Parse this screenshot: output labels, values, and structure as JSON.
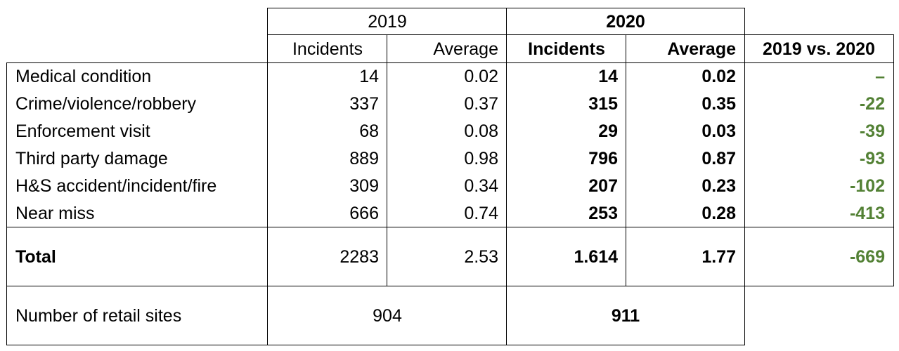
{
  "table": {
    "year_2019": "2019",
    "year_2020": "2020",
    "col_incidents_2019": "Incidents",
    "col_average_2019": "Average",
    "col_incidents_2020": "Incidents",
    "col_average_2020": "Average",
    "col_change": "2019 vs. 2020",
    "rows": [
      {
        "label": "Medical condition",
        "inc_2019": "14",
        "avg_2019": "0.02",
        "inc_2020": "14",
        "avg_2020": "0.02",
        "change": "–"
      },
      {
        "label": "Crime/violence/robbery",
        "inc_2019": "337",
        "avg_2019": "0.37",
        "inc_2020": "315",
        "avg_2020": "0.35",
        "change": "-22"
      },
      {
        "label": "Enforcement visit",
        "inc_2019": "68",
        "avg_2019": "0.08",
        "inc_2020": "29",
        "avg_2020": "0.03",
        "change": "-39"
      },
      {
        "label": "Third party damage",
        "inc_2019": "889",
        "avg_2019": "0.98",
        "inc_2020": "796",
        "avg_2020": "0.87",
        "change": "-93"
      },
      {
        "label": "H&S accident/incident/fire",
        "inc_2019": "309",
        "avg_2019": "0.34",
        "inc_2020": "207",
        "avg_2020": "0.23",
        "change": "-102"
      },
      {
        "label": "Near miss",
        "inc_2019": "666",
        "avg_2019": "0.74",
        "inc_2020": "253",
        "avg_2020": "0.28",
        "change": "-413"
      }
    ],
    "total": {
      "label": "Total",
      "inc_2019": "2283",
      "avg_2019": "2.53",
      "inc_2020": "1.614",
      "avg_2020": "1.77",
      "change": "-669"
    },
    "sites": {
      "label": "Number of retail sites",
      "val_2019": "904",
      "val_2020": "911"
    }
  },
  "colors": {
    "change_text": "#538135",
    "border": "#000000"
  }
}
